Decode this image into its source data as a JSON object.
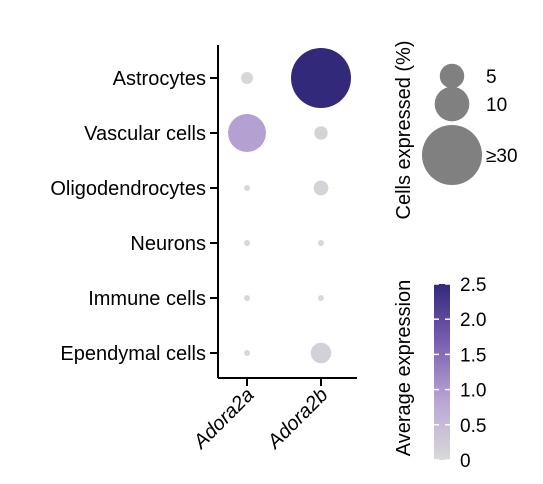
{
  "chart_data": {
    "type": "dot",
    "categories_y": [
      "Astrocytes",
      "Vascular cells",
      "Oligodendrocytes",
      "Neurons",
      "Immune cells",
      "Ependymal cells"
    ],
    "categories_x": [
      "Adora2a",
      "Adora2b"
    ],
    "points": [
      {
        "gene": "Adora2a",
        "cell": "Astrocytes",
        "pct": 1.2,
        "avg_expr": 0.05
      },
      {
        "gene": "Adora2b",
        "cell": "Astrocytes",
        "pct": 30,
        "avg_expr": 2.5
      },
      {
        "gene": "Adora2a",
        "cell": "Vascular cells",
        "pct": 12,
        "avg_expr": 0.9
      },
      {
        "gene": "Adora2b",
        "cell": "Vascular cells",
        "pct": 1.5,
        "avg_expr": 0.1
      },
      {
        "gene": "Adora2a",
        "cell": "Oligodendrocytes",
        "pct": 0.3,
        "avg_expr": 0.02
      },
      {
        "gene": "Adora2b",
        "cell": "Oligodendrocytes",
        "pct": 1.8,
        "avg_expr": 0.1
      },
      {
        "gene": "Adora2a",
        "cell": "Neurons",
        "pct": 0.3,
        "avg_expr": 0.02
      },
      {
        "gene": "Adora2b",
        "cell": "Neurons",
        "pct": 0.3,
        "avg_expr": 0.02
      },
      {
        "gene": "Adora2a",
        "cell": "Immune cells",
        "pct": 0.3,
        "avg_expr": 0.02
      },
      {
        "gene": "Adora2b",
        "cell": "Immune cells",
        "pct": 0.3,
        "avg_expr": 0.02
      },
      {
        "gene": "Adora2a",
        "cell": "Ependymal cells",
        "pct": 0.3,
        "avg_expr": 0.02
      },
      {
        "gene": "Adora2b",
        "cell": "Ependymal cells",
        "pct": 3.5,
        "avg_expr": 0.15
      }
    ],
    "size_legend": {
      "title": "Cells expressed (%)",
      "entries": [
        {
          "label": "5",
          "pct": 5
        },
        {
          "label": "10",
          "pct": 10
        },
        {
          "label": "≥30",
          "pct": 30
        }
      ]
    },
    "color_legend": {
      "title": "Average expression",
      "range": [
        0,
        2.5
      ],
      "ticks": [
        {
          "label": "2.5",
          "value": 2.5
        },
        {
          "label": "2.0",
          "value": 2.0
        },
        {
          "label": "1.5",
          "value": 1.5
        },
        {
          "label": "1.0",
          "value": 1.0
        },
        {
          "label": "0.5",
          "value": 0.5
        },
        {
          "label": "0",
          "value": 0
        }
      ],
      "colors": [
        "#d9d9d9",
        "#b9a6d4",
        "#7a5fb2",
        "#33297a"
      ]
    }
  }
}
